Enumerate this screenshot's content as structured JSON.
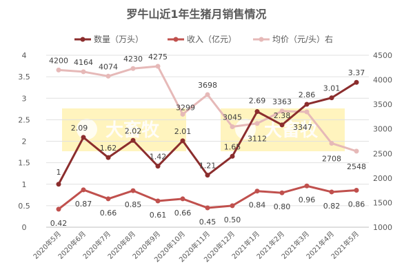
{
  "chart_data": {
    "type": "line",
    "title": "罗牛山近1年生猪月销售情况",
    "categories": [
      "2020年5月",
      "2020年6月",
      "2020年7月",
      "2020年8月",
      "2020年9月",
      "2020年10月",
      "2020年11月",
      "2020年12月",
      "2021年1月",
      "2021年2月",
      "2021年3月",
      "2021年4月",
      "2021年5月"
    ],
    "left_axis": {
      "min": 0,
      "max": 4,
      "step": 0.5,
      "ticks": [
        "0",
        "0.5",
        "1",
        "1.5",
        "2",
        "2.5",
        "3",
        "3.5",
        "4"
      ]
    },
    "right_axis": {
      "min": 1000,
      "max": 4500,
      "step": 500,
      "ticks": [
        "1000",
        "1500",
        "2000",
        "2500",
        "3000",
        "3500",
        "4000",
        "4500"
      ]
    },
    "grid": true,
    "legend_position": "top",
    "series": [
      {
        "name": "数量（万头）",
        "axis": "left",
        "color": "#8b2d2d",
        "values": [
          1,
          2.09,
          1.62,
          2.02,
          1.42,
          2.01,
          1.21,
          1.65,
          2.69,
          2.38,
          2.86,
          3.01,
          3.37
        ],
        "labels": [
          "1",
          "2.09",
          "1.62",
          "2.02",
          "1.42",
          "2.01",
          "1.21",
          "1.65",
          "2.69",
          "2.38",
          "2.86",
          "3.01",
          "3.37"
        ]
      },
      {
        "name": "收入（亿元）",
        "axis": "left",
        "color": "#c0504d",
        "values": [
          0.42,
          0.87,
          0.66,
          0.85,
          0.61,
          0.66,
          0.45,
          0.5,
          0.84,
          0.8,
          0.96,
          0.82,
          0.86
        ],
        "labels": [
          "0.42",
          "0.87",
          "0.66",
          "0.85",
          "0.61",
          "0.66",
          "0.45",
          "0.50",
          "0.84",
          "0.80",
          "0.96",
          "0.82",
          "0.86"
        ]
      },
      {
        "name": "均价（元/头）右",
        "axis": "right",
        "color": "#e6b9b8",
        "values": [
          4200,
          4164,
          4074,
          4230,
          4275,
          3299,
          3698,
          3045,
          3112,
          3363,
          3347,
          2708,
          2548
        ],
        "labels": [
          "4200",
          "4164",
          "4074",
          "4230",
          "4275",
          "3299",
          "3698",
          "3045",
          "3112",
          "3363",
          "3347",
          "2708",
          "2548"
        ]
      }
    ],
    "watermark": {
      "text": "大畜牧",
      "color": "#fff2b3"
    }
  }
}
